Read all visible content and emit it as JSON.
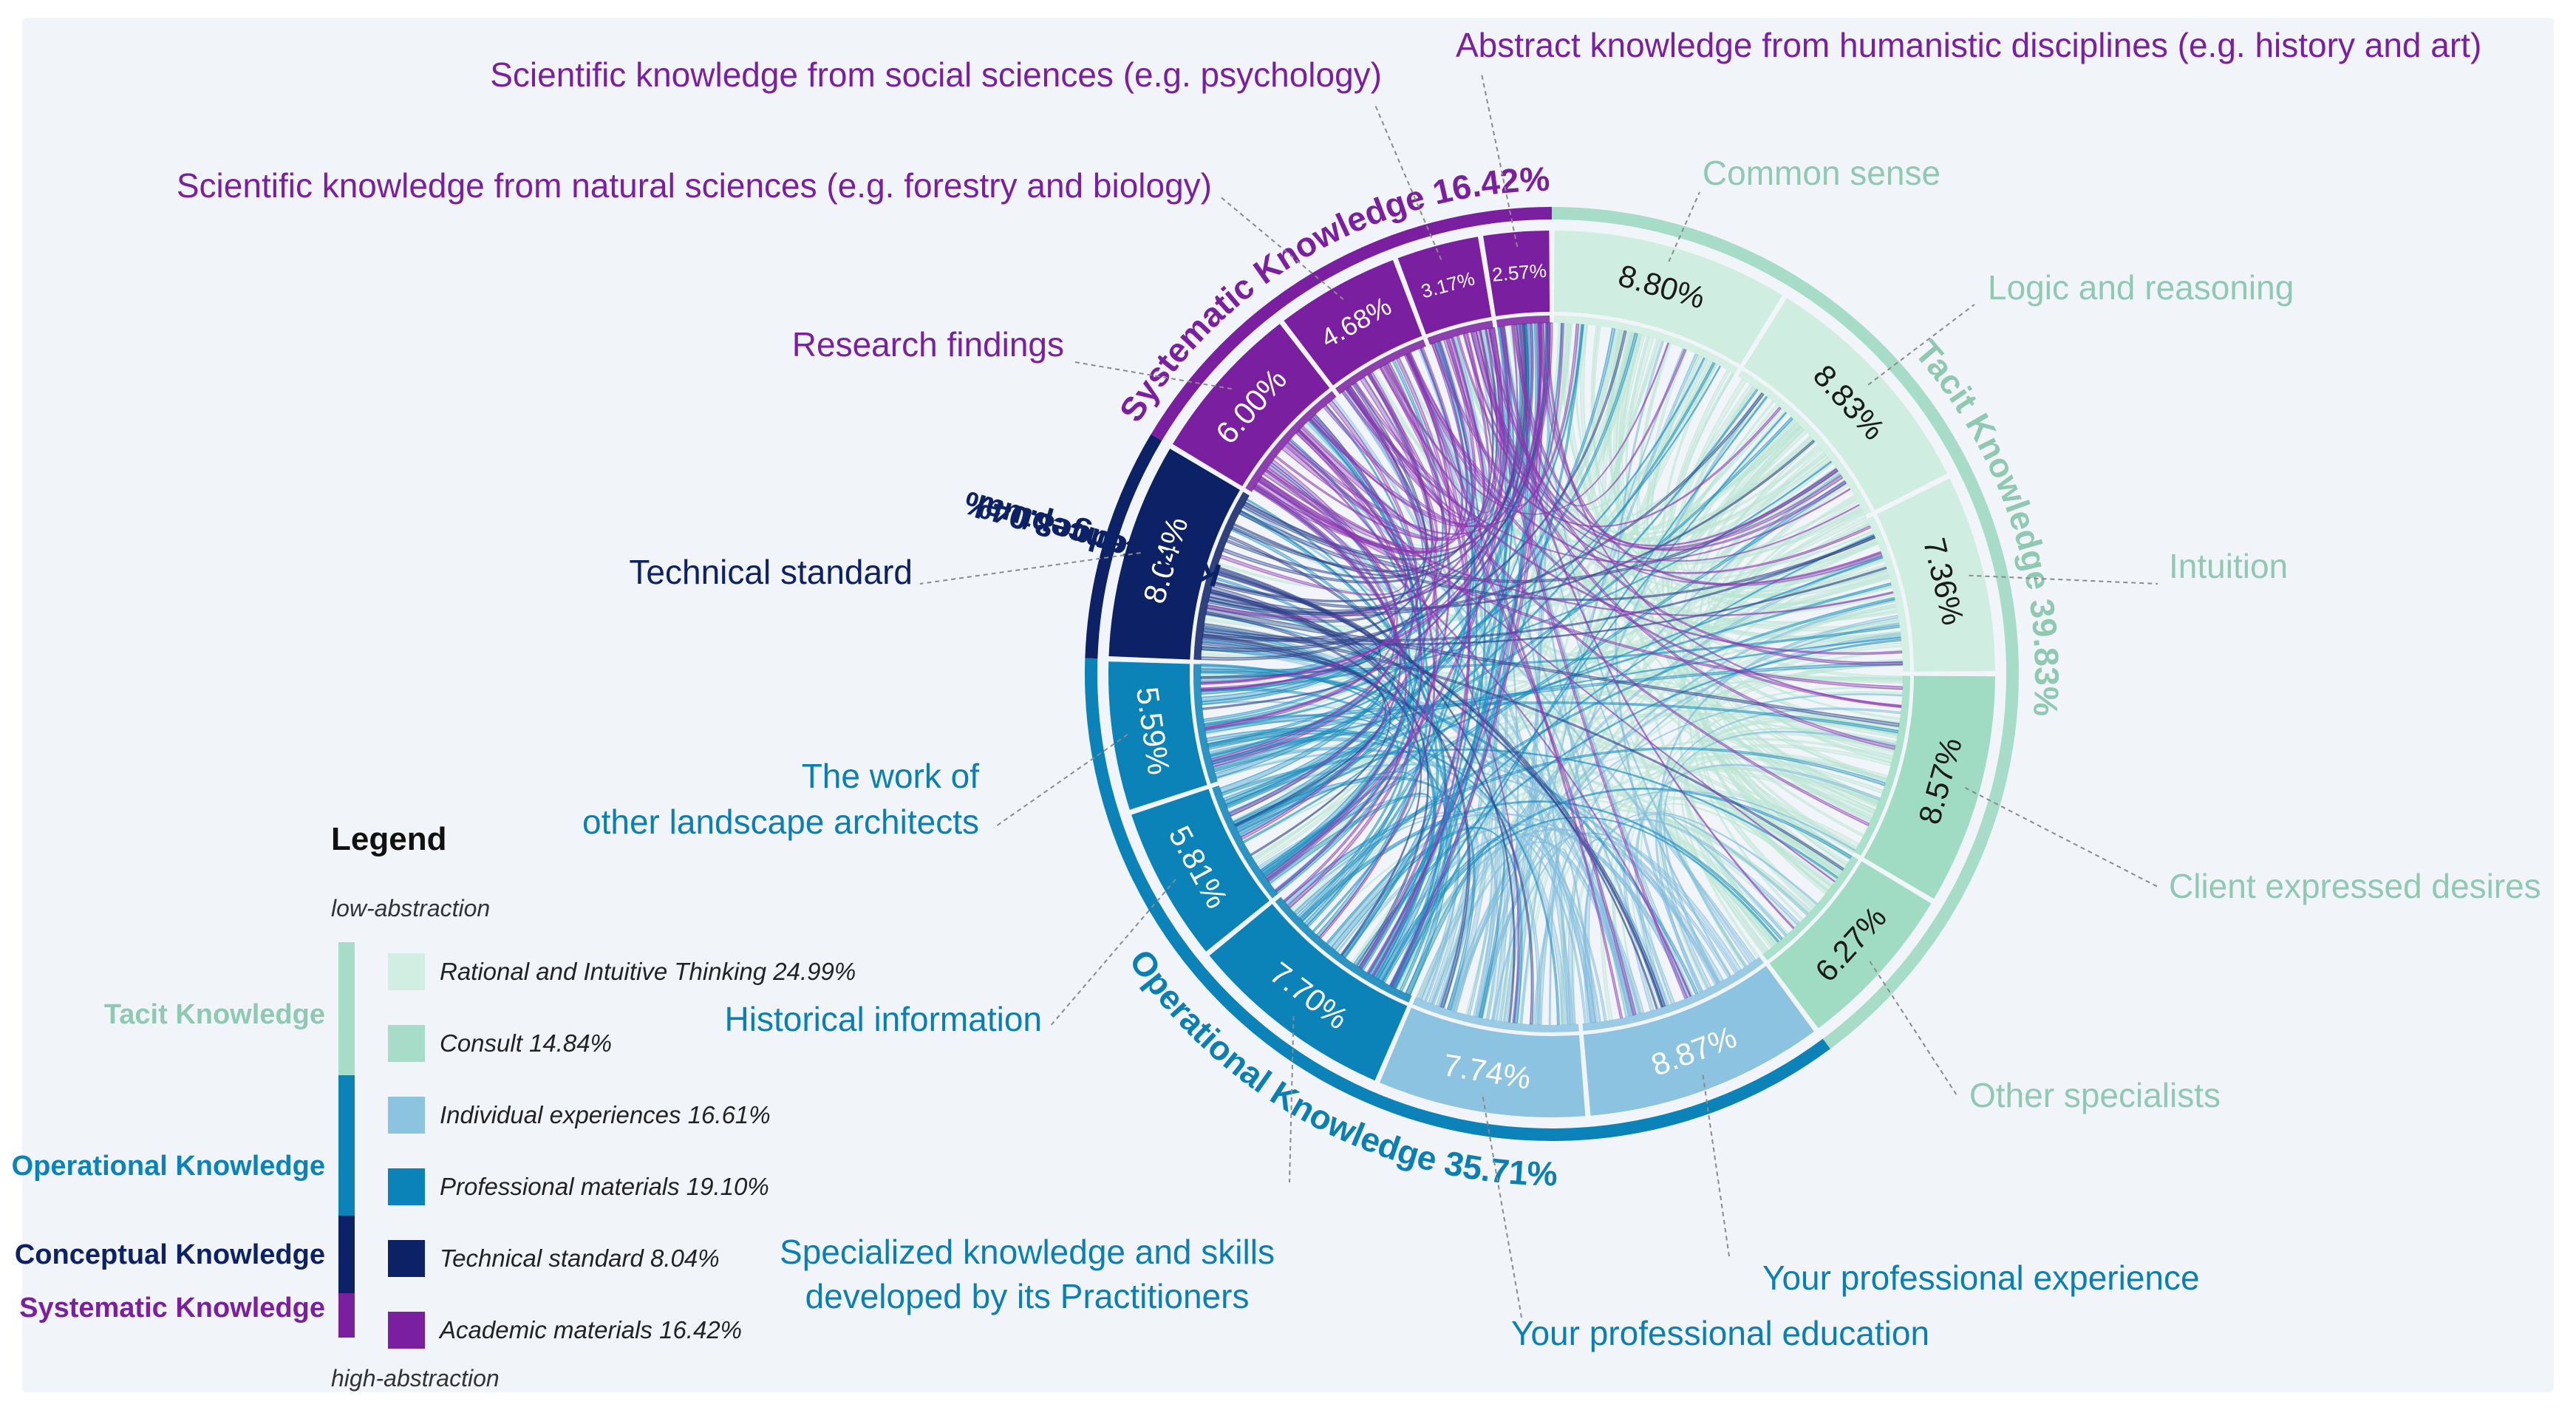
{
  "chart_data": {
    "type": "chord",
    "groups": [
      {
        "name": "Tacit Knowledge",
        "label": "Tacit Knowledge 39.83%",
        "value": 39.83,
        "color": "#a6dcc8"
      },
      {
        "name": "Operational Knowledge",
        "label": "Operational Knowledge 35.71%",
        "value": 35.71,
        "color": "#0b83b8"
      },
      {
        "name": "Conceptual Knowledge",
        "label_line1": "Conceptual",
        "label_line2": "Knowledge8.04%",
        "value": 8.04,
        "color": "#0d2166"
      },
      {
        "name": "Systematic Knowledge",
        "label": "Systematic Knowledge 16.42%",
        "value": 16.42,
        "color": "#7a1fa0"
      }
    ],
    "segments": [
      {
        "label": "Common sense",
        "value": 8.8,
        "value_label": "8.80%",
        "group": "Tacit Knowledge",
        "color": "#cfeee1",
        "text_color": "#1a1a1a"
      },
      {
        "label": "Logic and reasoning",
        "value": 8.83,
        "value_label": "8.83%",
        "group": "Tacit Knowledge",
        "color": "#cfeee1",
        "text_color": "#1a1a1a"
      },
      {
        "label": "Intuition",
        "value": 7.36,
        "value_label": "7.36%",
        "group": "Tacit Knowledge",
        "color": "#cfeee1",
        "text_color": "#1a1a1a"
      },
      {
        "label": "Client expressed desires",
        "value": 8.57,
        "value_label": "8.57%",
        "group": "Tacit Knowledge",
        "color": "#9fdcc3",
        "text_color": "#1a1a1a"
      },
      {
        "label": "Other specialists",
        "value": 6.27,
        "value_label": "6.27%",
        "group": "Tacit Knowledge",
        "color": "#9fdcc3",
        "text_color": "#1a1a1a"
      },
      {
        "label": "Your professional experience",
        "value": 8.87,
        "value_label": "8.87%",
        "group": "Operational Knowledge",
        "color": "#8cc3e0",
        "text_color": "#ffffff"
      },
      {
        "label": "Your professional education",
        "value": 7.74,
        "value_label": "7.74%",
        "group": "Operational Knowledge",
        "color": "#8cc3e0",
        "text_color": "#ffffff"
      },
      {
        "label": "Specialized knowledge and skills developed by its Practitioners",
        "value": 7.7,
        "value_label": "7.70%",
        "group": "Operational Knowledge",
        "color": "#0b83b8",
        "text_color": "#ffffff"
      },
      {
        "label": "Historical information",
        "value": 5.81,
        "value_label": "5.81%",
        "group": "Operational Knowledge",
        "color": "#0b83b8",
        "text_color": "#ffffff"
      },
      {
        "label": "The work of other landscape architects",
        "value": 5.59,
        "value_label": "5.59%",
        "group": "Operational Knowledge",
        "color": "#0b83b8",
        "text_color": "#ffffff"
      },
      {
        "label": "Technical standard",
        "value": 8.04,
        "value_label": "8.04%",
        "group": "Conceptual Knowledge",
        "color": "#0d2166",
        "text_color": "#ffffff"
      },
      {
        "label": "Research findings",
        "value": 6.0,
        "value_label": "6.00%",
        "group": "Systematic Knowledge",
        "color": "#7a1fa0",
        "text_color": "#ffffff"
      },
      {
        "label": "Scientific knowledge from natural sciences (e.g. forestry and biology)",
        "value": 4.68,
        "value_label": "4.68%",
        "group": "Systematic Knowledge",
        "color": "#7a1fa0",
        "text_color": "#ffffff"
      },
      {
        "label": "Scientific knowledge from social sciences (e.g. psychology)",
        "value": 3.17,
        "value_label": "3.17%",
        "group": "Systematic Knowledge",
        "color": "#7a1fa0",
        "text_color": "#ffffff"
      },
      {
        "label": "Abstract knowledge from humanistic disciplines (e.g. history and art)",
        "value": 2.57,
        "value_label": "2.57%",
        "group": "Systematic Knowledge",
        "color": "#7a1fa0",
        "text_color": "#ffffff"
      }
    ],
    "subcategories": [
      {
        "name": "Rational and Intuitive Thinking",
        "value": 24.99,
        "color": "#d2eee2"
      },
      {
        "name": "Consult",
        "value": 14.84,
        "color": "#a6dcc8"
      },
      {
        "name": "Individual experiences",
        "value": 16.61,
        "color": "#8cc3e0"
      },
      {
        "name": "Professional materials",
        "value": 19.1,
        "color": "#0b83b8"
      },
      {
        "name": "Technical standard",
        "value": 8.04,
        "color": "#0d2166"
      },
      {
        "name": "Academic materials",
        "value": 16.42,
        "color": "#7a1fa0"
      }
    ]
  },
  "segment_display_labels": {
    "seg0": [
      "Common sense"
    ],
    "seg1": [
      "Logic and reasoning"
    ],
    "seg2": [
      "Intuition"
    ],
    "seg3": [
      "Client expressed desires"
    ],
    "seg4": [
      "Other specialists"
    ],
    "seg5": [
      "Your professional experience"
    ],
    "seg6": [
      "Your professional education"
    ],
    "seg7": [
      "Specialized knowledge and skills",
      "developed by its Practitioners"
    ],
    "seg8": [
      "Historical information"
    ],
    "seg9": [
      "The work of",
      "other landscape architects"
    ],
    "seg10": [
      "Technical standard"
    ],
    "seg11": [
      "Research findings"
    ],
    "seg12": [
      "Scientific knowledge from natural sciences (e.g. forestry and biology)"
    ],
    "seg13": [
      "Scientific knowledge from social sciences (e.g. psychology)"
    ],
    "seg14": [
      "Abstract knowledge from humanistic disciplines (e.g. history and art)"
    ]
  },
  "legend": {
    "title": "Legend",
    "low": "low-abstraction",
    "high": "high-abstraction",
    "groups": [
      {
        "label": "Tacit Knowledge",
        "color": "#a6dcc8"
      },
      {
        "label": "Operational Knowledge",
        "color": "#0b83b8"
      },
      {
        "label": "Conceptual Knowledge",
        "color": "#0d2166"
      },
      {
        "label": "Systematic Knowledge",
        "color": "#7a1fa0"
      }
    ],
    "items": [
      {
        "label": "Rational and Intuitive Thinking 24.99%",
        "color": "#d2eee2"
      },
      {
        "label": "Consult 14.84%",
        "color": "#a6dcc8"
      },
      {
        "label": "Individual experiences 16.61%",
        "color": "#8cc3e0"
      },
      {
        "label": "Professional materials 19.10%",
        "color": "#0b83b8"
      },
      {
        "label": "Technical standard 8.04%",
        "color": "#0d2166"
      },
      {
        "label": "Academic materials 16.42%",
        "color": "#7a1fa0"
      }
    ]
  },
  "colors": {
    "background": "#f1f5f9",
    "tacit_text": "#8fc9b2",
    "operational_text": "#0b7fb3",
    "conceptual_text": "#0d2166",
    "systematic_text": "#7a1fa0"
  }
}
